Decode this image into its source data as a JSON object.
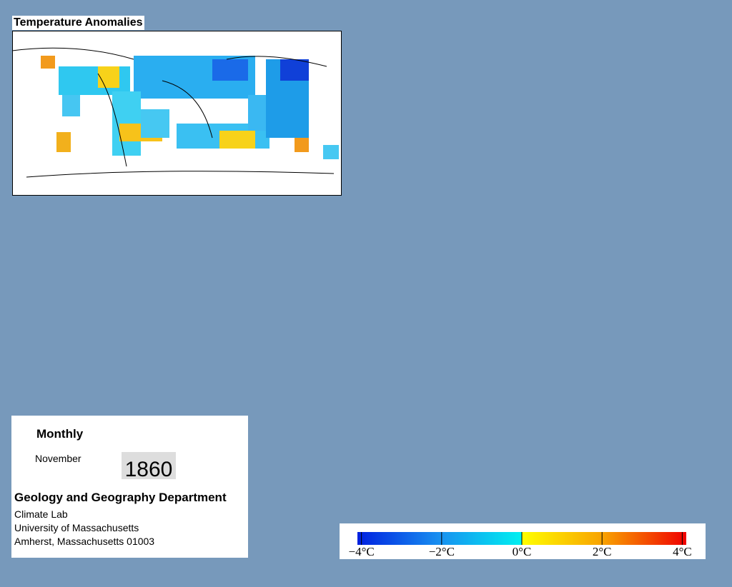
{
  "map": {
    "title": "Temperature Anomalies"
  },
  "info": {
    "period": "Monthly",
    "month": "November",
    "year": "1860",
    "department": "Geology and Geography Department",
    "address": [
      "Climate Lab",
      "University of Massachusetts",
      "Amherst, Massachusetts 01003"
    ]
  },
  "colorbar": {
    "range": [
      -4.1,
      4.1
    ],
    "ticks": [
      {
        "value": -4,
        "label": "−4°C"
      },
      {
        "value": -2,
        "label": "−2°C"
      },
      {
        "value": 0,
        "label": "0°C"
      },
      {
        "value": 2,
        "label": "2°C"
      },
      {
        "value": 4,
        "label": "4°C"
      }
    ]
  }
}
